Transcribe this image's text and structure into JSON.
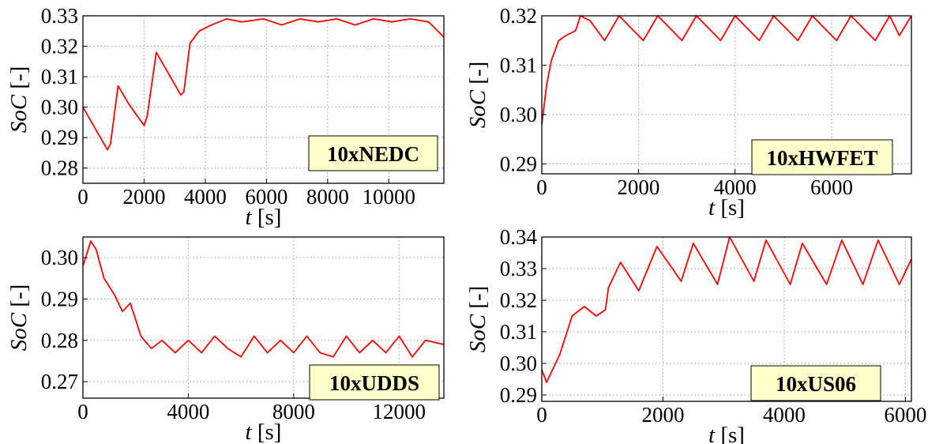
{
  "series_color": "#ff0000",
  "badge_color": "#ffffcc",
  "chart_data": [
    {
      "type": "line",
      "title": "",
      "badge": "10xNEDC",
      "xlabel": "t [s]",
      "ylabel": "SoC [-]",
      "xlim": [
        0,
        11800
      ],
      "ylim": [
        0.275,
        0.33
      ],
      "xticks": [
        0,
        2000,
        4000,
        6000,
        8000,
        10000
      ],
      "xtick_labels": [
        "0",
        "2000",
        "4000",
        "6000",
        "8000",
        "10000"
      ],
      "yticks": [
        0.28,
        0.29,
        0.3,
        0.31,
        0.32,
        0.33
      ],
      "ytick_labels": [
        "0.28",
        "0.29",
        "0.30",
        "0.31",
        "0.32",
        "0.33"
      ],
      "grid": true,
      "x": [
        0,
        400,
        800,
        900,
        1150,
        1500,
        2000,
        2100,
        2400,
        2800,
        3200,
        3300,
        3500,
        3800,
        4200,
        4700,
        5200,
        5900,
        6500,
        7100,
        7700,
        8300,
        8900,
        9500,
        10100,
        10700,
        11300,
        11800
      ],
      "y": [
        0.3,
        0.293,
        0.286,
        0.288,
        0.307,
        0.301,
        0.294,
        0.297,
        0.318,
        0.311,
        0.304,
        0.305,
        0.321,
        0.325,
        0.327,
        0.329,
        0.328,
        0.329,
        0.327,
        0.329,
        0.328,
        0.329,
        0.327,
        0.329,
        0.328,
        0.329,
        0.328,
        0.323
      ]
    },
    {
      "type": "line",
      "title": "",
      "badge": "10xHWFET",
      "xlabel": "t [s]",
      "ylabel": "SoC [-]",
      "xlim": [
        0,
        7650
      ],
      "ylim": [
        0.288,
        0.32
      ],
      "xticks": [
        0,
        2000,
        4000,
        6000
      ],
      "xtick_labels": [
        "0",
        "2000",
        "4000",
        "6000"
      ],
      "yticks": [
        0.29,
        0.3,
        0.31,
        0.32
      ],
      "ytick_labels": [
        "0.29",
        "0.30",
        "0.31",
        "0.32"
      ],
      "grid": true,
      "x": [
        0,
        100,
        200,
        350,
        500,
        700,
        800,
        1000,
        1300,
        1600,
        1800,
        2100,
        2400,
        2600,
        2900,
        3200,
        3400,
        3700,
        4000,
        4200,
        4500,
        4800,
        5000,
        5300,
        5600,
        5800,
        6100,
        6400,
        6600,
        6900,
        7200,
        7400,
        7650
      ],
      "y": [
        0.298,
        0.306,
        0.311,
        0.315,
        0.316,
        0.317,
        0.32,
        0.319,
        0.315,
        0.32,
        0.318,
        0.315,
        0.32,
        0.318,
        0.315,
        0.32,
        0.318,
        0.315,
        0.32,
        0.318,
        0.315,
        0.32,
        0.318,
        0.315,
        0.32,
        0.318,
        0.315,
        0.32,
        0.318,
        0.315,
        0.32,
        0.316,
        0.32
      ]
    },
    {
      "type": "line",
      "title": "",
      "badge": "10xUDDS",
      "xlabel": "t [s]",
      "ylabel": "SoC [-]",
      "xlim": [
        0,
        13700
      ],
      "ylim": [
        0.266,
        0.305
      ],
      "xticks": [
        0,
        4000,
        8000,
        12000
      ],
      "xtick_labels": [
        "0",
        "4000",
        "8000",
        "12000"
      ],
      "yticks": [
        0.27,
        0.28,
        0.29,
        0.3
      ],
      "ytick_labels": [
        "0.27",
        "0.28",
        "0.29",
        "0.30"
      ],
      "grid": true,
      "x": [
        0,
        300,
        500,
        800,
        1200,
        1500,
        1800,
        2200,
        2600,
        3000,
        3500,
        4000,
        4500,
        5000,
        5500,
        6000,
        6500,
        7000,
        7500,
        8000,
        8500,
        9000,
        9500,
        10000,
        10500,
        11000,
        11500,
        12000,
        12500,
        13000,
        13700
      ],
      "y": [
        0.298,
        0.304,
        0.302,
        0.295,
        0.291,
        0.287,
        0.289,
        0.281,
        0.278,
        0.28,
        0.277,
        0.28,
        0.277,
        0.281,
        0.278,
        0.276,
        0.281,
        0.277,
        0.28,
        0.277,
        0.281,
        0.277,
        0.276,
        0.281,
        0.277,
        0.28,
        0.277,
        0.281,
        0.276,
        0.28,
        0.279
      ]
    },
    {
      "type": "line",
      "title": "",
      "badge": "10xUS06",
      "xlabel": "t [s]",
      "ylabel": "SoC [-]",
      "xlim": [
        0,
        6100
      ],
      "ylim": [
        0.288,
        0.34
      ],
      "xticks": [
        0,
        2000,
        4000,
        6000
      ],
      "xtick_labels": [
        "0",
        "2000",
        "4000",
        "6000"
      ],
      "yticks": [
        0.29,
        0.3,
        0.31,
        0.32,
        0.33,
        0.34
      ],
      "ytick_labels": [
        "0.29",
        "0.30",
        "0.31",
        "0.32",
        "0.33",
        "0.34"
      ],
      "grid": true,
      "x": [
        0,
        80,
        300,
        500,
        700,
        900,
        1050,
        1100,
        1300,
        1600,
        1900,
        2300,
        2500,
        2900,
        3100,
        3500,
        3700,
        4100,
        4300,
        4700,
        4950,
        5300,
        5550,
        5900,
        6100
      ],
      "y": [
        0.298,
        0.294,
        0.303,
        0.315,
        0.318,
        0.315,
        0.317,
        0.324,
        0.332,
        0.323,
        0.337,
        0.326,
        0.338,
        0.325,
        0.34,
        0.326,
        0.339,
        0.325,
        0.338,
        0.325,
        0.339,
        0.325,
        0.339,
        0.325,
        0.333
      ]
    }
  ]
}
